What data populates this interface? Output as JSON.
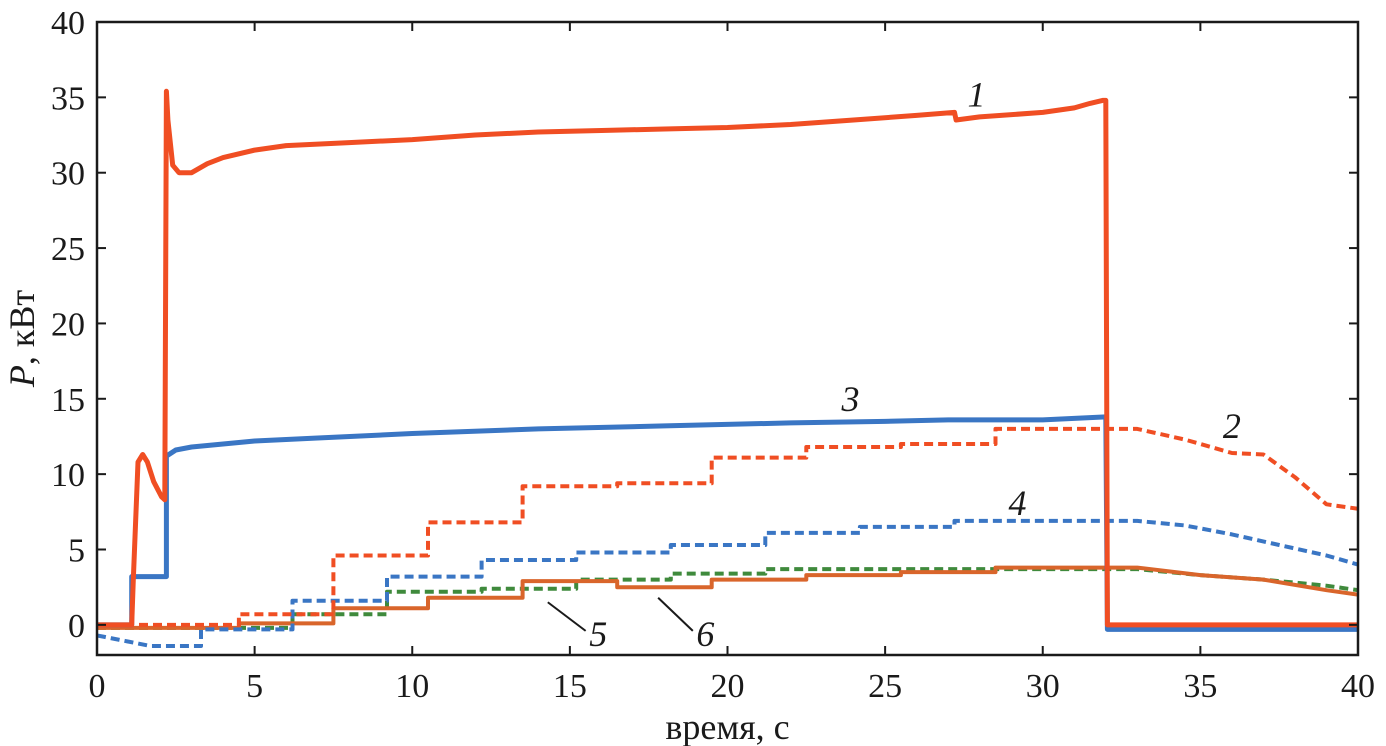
{
  "chart_data": {
    "type": "line",
    "xlabel": "время, с",
    "ylabel_var": "P",
    "ylabel_unit": ", кВт",
    "xlim": [
      0,
      40
    ],
    "ylim": [
      -2,
      40
    ],
    "xticks": [
      0,
      5,
      10,
      15,
      20,
      25,
      30,
      35,
      40
    ],
    "yticks": [
      0,
      5,
      10,
      15,
      20,
      25,
      30,
      35,
      40
    ],
    "grid": false,
    "colors": {
      "red": "#f04e23",
      "blue": "#3a76c4",
      "green": "#3f8a3c",
      "orange": "#d9652b",
      "axis": "#1a1a1a"
    },
    "series": [
      {
        "name": "1",
        "color": "red",
        "style": "solid",
        "width": 5,
        "x": [
          0,
          1.1,
          1.15,
          1.3,
          1.45,
          1.6,
          1.8,
          2.05,
          2.15,
          2.2,
          2.25,
          2.4,
          2.6,
          3.0,
          3.5,
          4.0,
          5.0,
          6.0,
          8.0,
          10.0,
          12.0,
          14.0,
          16.0,
          18.0,
          20.0,
          22.0,
          24.0,
          26.0,
          27.2,
          27.25,
          28.0,
          30.0,
          31.0,
          31.5,
          31.9,
          32.0,
          32.05,
          40
        ],
        "y": [
          0,
          0,
          3.0,
          10.8,
          11.3,
          10.8,
          9.5,
          8.5,
          8.3,
          35.4,
          33.5,
          30.5,
          30.0,
          30.0,
          30.6,
          31.0,
          31.5,
          31.8,
          32.0,
          32.2,
          32.5,
          32.7,
          32.8,
          32.9,
          33.0,
          33.2,
          33.5,
          33.8,
          34.0,
          33.5,
          33.7,
          34.0,
          34.3,
          34.6,
          34.8,
          34.8,
          0,
          0
        ]
      },
      {
        "name": "2",
        "color": "red",
        "style": "dashed",
        "width": 4,
        "x": [
          0,
          4.5,
          4.5,
          7.5,
          7.5,
          10.5,
          10.5,
          13.5,
          13.5,
          16.5,
          16.5,
          19.5,
          19.5,
          22.5,
          22.5,
          25.5,
          25.5,
          28.5,
          28.5,
          33.0,
          34.5,
          36.0,
          37.0,
          38.0,
          39.0,
          40
        ],
        "y": [
          0,
          0,
          0.7,
          0.7,
          4.6,
          4.6,
          6.8,
          6.8,
          9.2,
          9.2,
          9.4,
          9.4,
          11.1,
          11.1,
          11.8,
          11.8,
          12.0,
          12.0,
          13.0,
          13.0,
          12.3,
          11.4,
          11.3,
          9.8,
          8.0,
          7.7
        ]
      },
      {
        "name": "3",
        "color": "blue",
        "style": "solid",
        "width": 5,
        "x": [
          0,
          1.1,
          1.1,
          2.2,
          2.2,
          2.5,
          3.0,
          4.0,
          5.0,
          7.0,
          10.0,
          14.0,
          18.0,
          22.0,
          25.0,
          27.0,
          30.0,
          32.0,
          32.05,
          40
        ],
        "y": [
          0,
          0,
          3.2,
          3.2,
          11.2,
          11.6,
          11.8,
          12.0,
          12.2,
          12.4,
          12.7,
          13.0,
          13.2,
          13.4,
          13.5,
          13.6,
          13.6,
          13.8,
          -0.3,
          -0.3
        ]
      },
      {
        "name": "4",
        "color": "blue",
        "style": "dashed",
        "width": 4,
        "x": [
          0,
          1.7,
          1.7,
          3.3,
          3.3,
          6.2,
          6.2,
          9.2,
          9.2,
          12.2,
          12.2,
          15.2,
          15.2,
          18.2,
          18.2,
          21.2,
          21.2,
          24.2,
          24.2,
          27.2,
          27.2,
          33.0,
          34.5,
          36.0,
          37.5,
          39.0,
          40
        ],
        "y": [
          -0.7,
          -1.4,
          -1.4,
          -1.4,
          -0.3,
          -0.3,
          1.6,
          1.6,
          3.2,
          3.2,
          4.3,
          4.3,
          4.8,
          4.8,
          5.3,
          5.3,
          6.1,
          6.1,
          6.5,
          6.5,
          6.9,
          6.9,
          6.6,
          6.0,
          5.3,
          4.6,
          4.0
        ]
      },
      {
        "name": "5",
        "color": "green",
        "style": "dashed",
        "width": 4,
        "x": [
          0,
          6.2,
          6.2,
          9.2,
          9.2,
          12.2,
          12.2,
          15.2,
          15.2,
          18.2,
          18.2,
          21.2,
          21.2,
          33.0,
          35.0,
          37.0,
          39.0,
          40
        ],
        "y": [
          -0.2,
          -0.2,
          0.7,
          0.7,
          2.2,
          2.2,
          2.4,
          2.4,
          3.0,
          3.0,
          3.4,
          3.4,
          3.7,
          3.7,
          3.3,
          3.0,
          2.6,
          2.3
        ]
      },
      {
        "name": "6",
        "color": "orange",
        "style": "solid",
        "width": 4,
        "x": [
          0,
          4.5,
          4.5,
          7.5,
          7.5,
          10.5,
          10.5,
          13.5,
          13.5,
          16.5,
          16.5,
          19.5,
          19.5,
          22.5,
          22.5,
          25.5,
          25.5,
          28.5,
          28.5,
          33.0,
          35.0,
          37.0,
          39.0,
          40
        ],
        "y": [
          -0.2,
          -0.2,
          0.1,
          0.1,
          1.1,
          1.1,
          1.8,
          1.8,
          2.9,
          2.9,
          2.5,
          2.5,
          3.0,
          3.0,
          3.3,
          3.3,
          3.5,
          3.5,
          3.8,
          3.8,
          3.3,
          3.0,
          2.3,
          2.0
        ]
      }
    ],
    "annotations": [
      {
        "text": "1",
        "x": 27.9,
        "y": 34.4
      },
      {
        "text": "3",
        "x": 23.9,
        "y": 14.2
      },
      {
        "text": "2",
        "x": 36.0,
        "y": 12.4
      },
      {
        "text": "4",
        "x": 29.2,
        "y": 7.3
      },
      {
        "text": "5",
        "x": 15.9,
        "y": -1.4
      },
      {
        "text": "6",
        "x": 19.3,
        "y": -1.4
      }
    ],
    "leaders": [
      {
        "x1": 15.5,
        "y1": -0.4,
        "x2": 14.3,
        "y2": 1.5
      },
      {
        "x1": 18.9,
        "y1": -0.4,
        "x2": 17.8,
        "y2": 1.8
      }
    ]
  }
}
